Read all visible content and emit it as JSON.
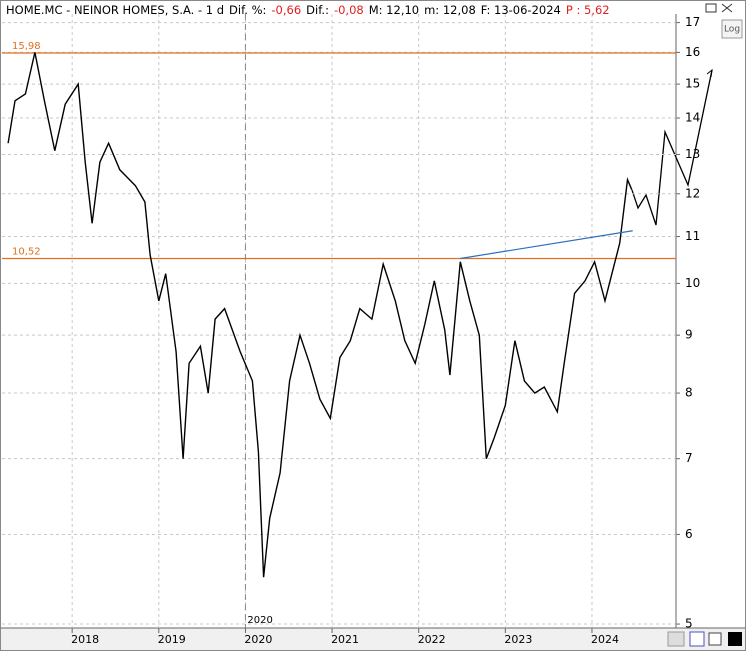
{
  "chart_data": {
    "type": "line",
    "header": [
      {
        "text": "HOME.MC - NEINOR HOMES, S.A. -  1 d",
        "color": "#000000"
      },
      {
        "text": "Dif. %:",
        "color": "#000000"
      },
      {
        "text": "-0,66",
        "color": "#e02020"
      },
      {
        "text": "Dif.:",
        "color": "#000000"
      },
      {
        "text": "-0,08",
        "color": "#e02020"
      },
      {
        "text": "M: 12,10",
        "color": "#000000"
      },
      {
        "text": "m: 12,08",
        "color": "#000000"
      },
      {
        "text": "F: 13-06-2024",
        "color": "#000000"
      },
      {
        "text": "P : 5,62",
        "color": "#e02020"
      }
    ],
    "log_button": "Log",
    "log_scale": true,
    "grid": true,
    "xlim": [
      2017.19,
      2024.97
    ],
    "ylim": [
      4.96,
      17.3
    ],
    "xticks": [
      2018,
      2019,
      2020,
      2021,
      2022,
      2023,
      2024
    ],
    "yticks": [
      5,
      6,
      7,
      8,
      9,
      10,
      11,
      12,
      13,
      14,
      15,
      16,
      17
    ],
    "series": [
      {
        "name": "HOME.MC",
        "color": "#000000",
        "x": [
          2017.26,
          2017.34,
          2017.46,
          2017.57,
          2017.68,
          2017.8,
          2017.92,
          2018.07,
          2018.15,
          2018.23,
          2018.32,
          2018.42,
          2018.55,
          2018.73,
          2018.84,
          2018.9,
          2019.0,
          2019.08,
          2019.2,
          2019.28,
          2019.35,
          2019.48,
          2019.57,
          2019.65,
          2019.76,
          2019.94,
          2020.08,
          2020.15,
          2020.21,
          2020.28,
          2020.4,
          2020.51,
          2020.63,
          2020.74,
          2020.86,
          2020.98,
          2021.09,
          2021.21,
          2021.32,
          2021.46,
          2021.59,
          2021.73,
          2021.84,
          2021.96,
          2022.07,
          2022.18,
          2022.3,
          2022.36,
          2022.48,
          2022.59,
          2022.7,
          2022.78,
          2022.87,
          2023.0,
          2023.11,
          2023.22,
          2023.34,
          2023.45,
          2023.6,
          2023.68,
          2023.8,
          2023.92,
          2024.03,
          2024.15,
          2024.23,
          2024.32,
          2024.41,
          2024.46
        ],
        "values": [
          13.3,
          14.5,
          14.7,
          16.0,
          14.5,
          13.1,
          14.4,
          15.0,
          12.8,
          11.3,
          12.8,
          13.3,
          12.6,
          12.2,
          11.8,
          10.6,
          9.65,
          10.2,
          8.7,
          7.0,
          8.5,
          8.8,
          8.0,
          9.3,
          9.5,
          8.7,
          8.2,
          7.1,
          5.5,
          6.2,
          6.8,
          8.2,
          9.0,
          8.5,
          7.9,
          7.6,
          8.6,
          8.9,
          9.5,
          9.3,
          10.4,
          9.65,
          8.9,
          8.5,
          9.2,
          10.05,
          9.1,
          8.3,
          10.45,
          9.65,
          9.0,
          7.0,
          7.3,
          7.8,
          8.9,
          8.2,
          8.0,
          8.1,
          7.7,
          8.5,
          9.8,
          10.05,
          10.45,
          9.65,
          10.2,
          10.85,
          12.35,
          12.1
        ]
      }
    ],
    "levels": [
      {
        "value": 15.98,
        "label": "15,98",
        "color": "#e07020"
      },
      {
        "value": 10.52,
        "label": "10,52",
        "color": "#e07020"
      }
    ],
    "trendline": {
      "color": "#2a6fc0",
      "x": [
        2022.48,
        2024.47
      ],
      "values": [
        10.52,
        11.13
      ]
    },
    "marker": {
      "x": 2020,
      "label": "2020"
    }
  }
}
